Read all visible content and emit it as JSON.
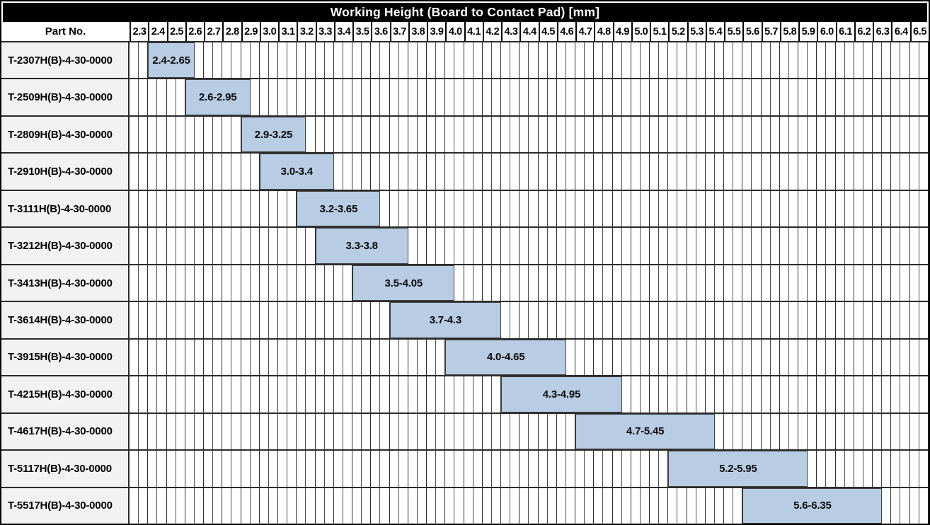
{
  "title": "Working Height (Board to Contact Pad) [mm]",
  "table": {
    "part_no_header": "Part No."
  },
  "colors": {
    "title_bg": "#000000",
    "title_fg": "#ffffff",
    "bar_fill": "#b8cce4",
    "bar_border": "#404040",
    "label_bg": "#f2f2f2",
    "grid_line": "#4d4d4d",
    "grid_line_strong": "#2e2e2e",
    "row_border": "#2b2b2b"
  },
  "chart_data": {
    "type": "bar",
    "orientation": "horizontal-range",
    "title": "Working Height (Board to Contact Pad) [mm]",
    "xlabel": "",
    "ylabel": "Part No.",
    "xlim": [
      2.3,
      6.6
    ],
    "x_tick_step": 0.1,
    "minor_grid_step": 0.05,
    "grid": true,
    "x_ticks": [
      "2.3",
      "2.4",
      "2.5",
      "2.6",
      "2.7",
      "2.8",
      "2.9",
      "3.0",
      "3.1",
      "3.2",
      "3.3",
      "3.4",
      "3.5",
      "3.6",
      "3.7",
      "3.8",
      "3.9",
      "4.0",
      "4.1",
      "4.2",
      "4.3",
      "4.4",
      "4.5",
      "4.6",
      "4.7",
      "4.8",
      "4.9",
      "5.0",
      "5.1",
      "5.2",
      "5.3",
      "5.4",
      "5.5",
      "5.6",
      "5.7",
      "5.8",
      "5.9",
      "6.0",
      "6.1",
      "6.2",
      "6.3",
      "6.4",
      "6.5"
    ],
    "categories": [
      "T-2307H(B)-4-30-0000",
      "T-2509H(B)-4-30-0000",
      "T-2809H(B)-4-30-0000",
      "T-2910H(B)-4-30-0000",
      "T-3111H(B)-4-30-0000",
      "T-3212H(B)-4-30-0000",
      "T-3413H(B)-4-30-0000",
      "T-3614H(B)-4-30-0000",
      "T-3915H(B)-4-30-0000",
      "T-4215H(B)-4-30-0000",
      "T-4617H(B)-4-30-0000",
      "T-5117H(B)-4-30-0000",
      "T-5517H(B)-4-30-0000"
    ],
    "ranges": [
      [
        2.4,
        2.65
      ],
      [
        2.6,
        2.95
      ],
      [
        2.9,
        3.25
      ],
      [
        3.0,
        3.4
      ],
      [
        3.2,
        3.65
      ],
      [
        3.3,
        3.8
      ],
      [
        3.5,
        4.05
      ],
      [
        3.7,
        4.3
      ],
      [
        4.0,
        4.65
      ],
      [
        4.3,
        4.95
      ],
      [
        4.7,
        5.45
      ],
      [
        5.2,
        5.95
      ],
      [
        5.6,
        6.35
      ]
    ],
    "range_labels": [
      "2.4-2.65",
      "2.6-2.95",
      "2.9-3.25",
      "3.0-3.4",
      "3.2-3.65",
      "3.3-3.8",
      "3.5-4.05",
      "3.7-4.3",
      "4.0-4.65",
      "4.3-4.95",
      "4.7-5.45",
      "5.2-5.95",
      "5.6-6.35"
    ]
  }
}
